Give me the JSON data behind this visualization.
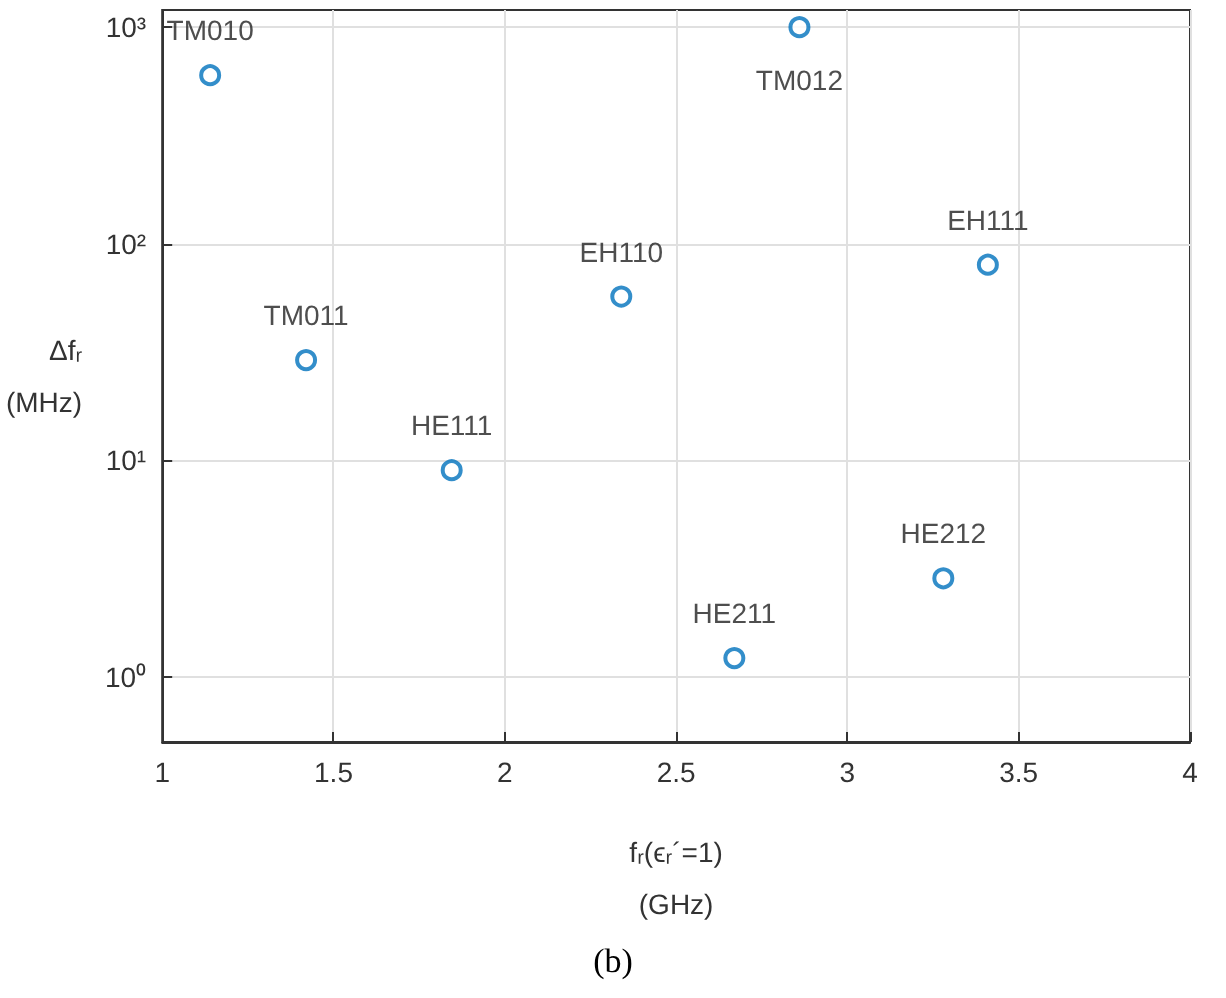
{
  "chart_data": {
    "type": "scatter",
    "x": [
      1.14,
      1.42,
      1.845,
      2.34,
      2.86,
      3.41,
      2.67,
      3.28
    ],
    "series": [
      {
        "color": "#0072bd",
        "values": [
          600,
          29,
          9,
          57,
          1000,
          80,
          1.22,
          2.85
        ]
      }
    ],
    "xlabel": "fᵣ(ϵᵣ´=1)\n(GHz)",
    "ylabel": "Δfᵣ\n(MHz)",
    "xlim": [
      1,
      4
    ],
    "xticks": [
      1,
      1.5,
      2,
      2.5,
      3,
      3.5,
      4
    ],
    "ylim": [
      0.5,
      1200
    ],
    "yticks": [
      {
        "value": 1,
        "label": "10⁰"
      },
      {
        "value": 10,
        "label": "10¹"
      },
      {
        "value": 100,
        "label": "10²"
      },
      {
        "value": 1000,
        "label": "10³"
      }
    ],
    "log": "y",
    "grid": true,
    "marker": "circle",
    "annotations": [
      {
        "text": "TM010",
        "x": 1.14,
        "y": 600
      },
      {
        "text": "TM011",
        "x": 1.42,
        "y": 29
      },
      {
        "text": "HE111",
        "x": 1.845,
        "y": 9
      },
      {
        "text": "EH110",
        "x": 2.34,
        "y": 57
      },
      {
        "text": "TM012",
        "x": 2.86,
        "y": 1000
      },
      {
        "text": "EH111",
        "x": 3.41,
        "y": 80
      },
      {
        "text": "HE211",
        "x": 2.67,
        "y": 1.22
      },
      {
        "text": "HE212",
        "x": 3.28,
        "y": 2.85
      },
      "(b)"
    ]
  }
}
